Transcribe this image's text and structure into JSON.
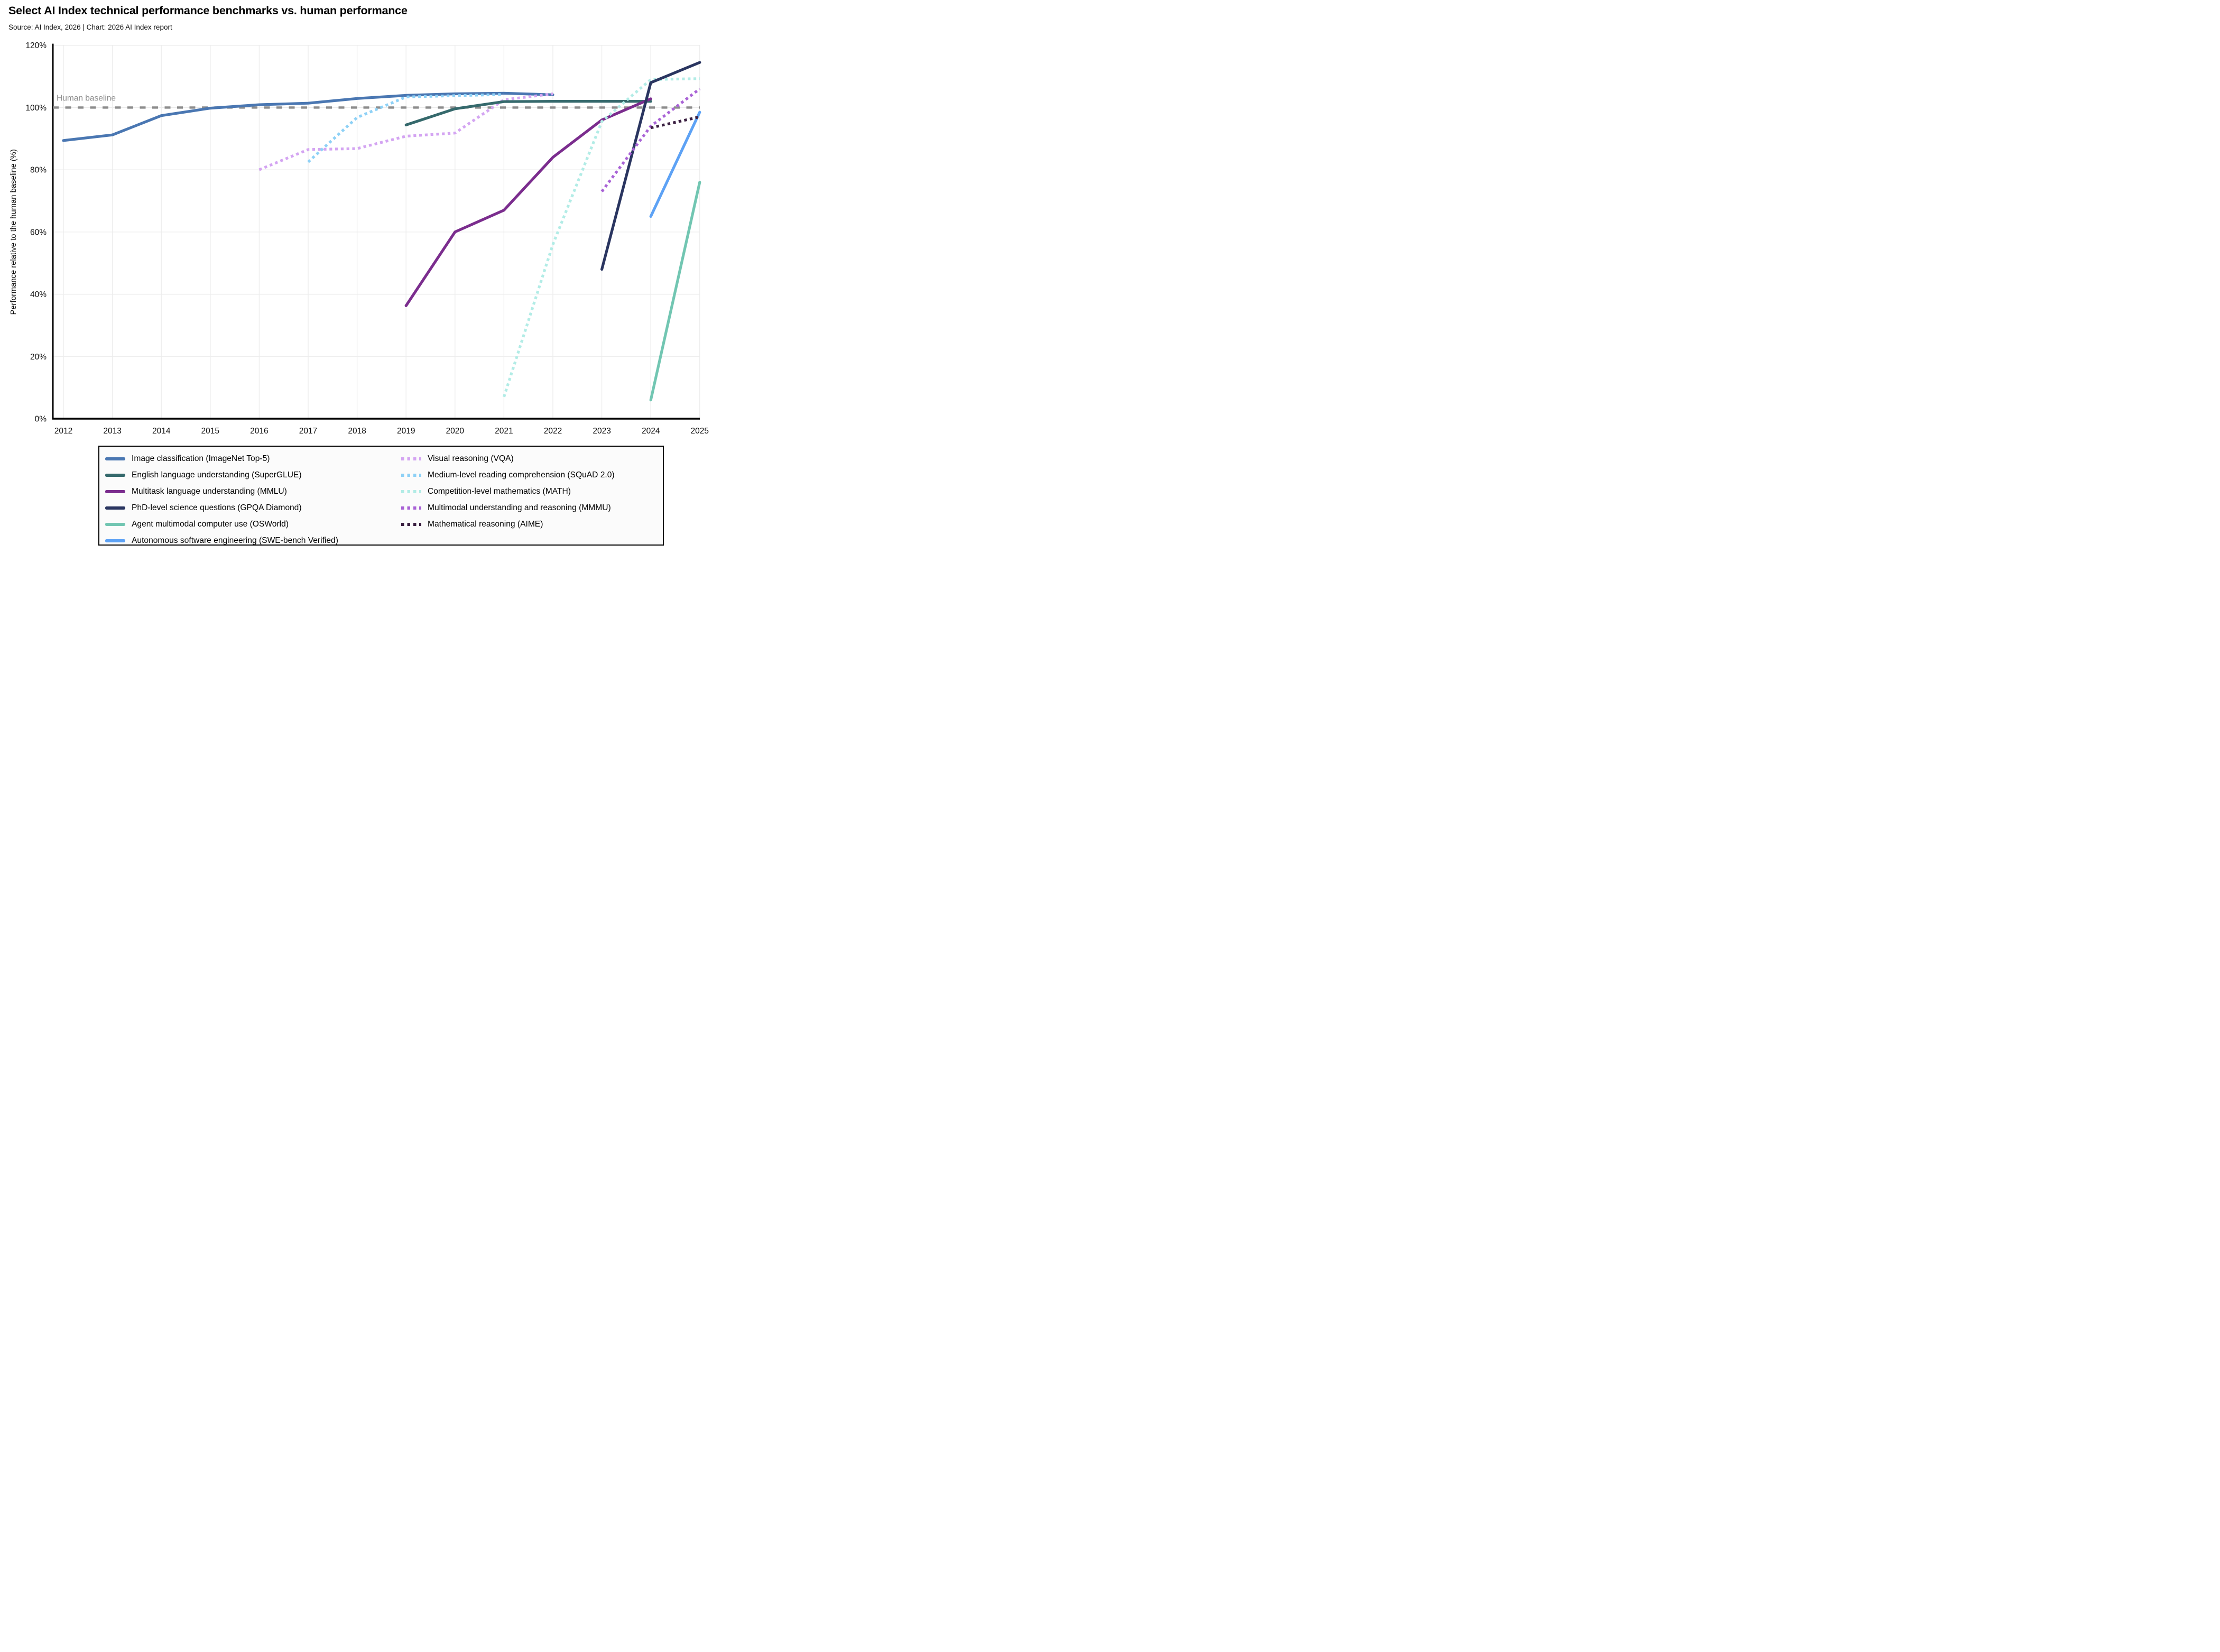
{
  "header": {
    "title": "Select AI Index technical performance benchmarks vs. human performance",
    "subtitle": "Source: AI Index, 2026 | Chart: 2026 AI Index report"
  },
  "chart_data": {
    "type": "line",
    "title": "Select AI Index technical performance benchmarks vs. human performance",
    "xlabel": "",
    "ylabel": "Performance relative to the human baseline (%)",
    "xlim": [
      2012,
      2025
    ],
    "ylim": [
      0,
      120
    ],
    "x_ticks": [
      2012,
      2013,
      2014,
      2015,
      2016,
      2017,
      2018,
      2019,
      2020,
      2021,
      2022,
      2023,
      2024,
      2025
    ],
    "y_ticks": [
      0,
      20,
      40,
      60,
      80,
      100,
      120
    ],
    "y_tick_suffix": "%",
    "grid": true,
    "legend_position": "bottom",
    "baseline": {
      "value": 100,
      "label": "Human baseline",
      "color": "#8c8c8c",
      "style": "dashed"
    },
    "series": [
      {
        "name": "Image classification (ImageNet Top-5)",
        "color": "#4a77b2",
        "style": "solid",
        "points": [
          [
            2012,
            89.4
          ],
          [
            2013,
            91.2
          ],
          [
            2014,
            97.4
          ],
          [
            2015,
            99.8
          ],
          [
            2016,
            100.9
          ],
          [
            2017,
            101.4
          ],
          [
            2018,
            102.9
          ],
          [
            2019,
            103.9
          ],
          [
            2020,
            104.4
          ],
          [
            2021,
            104.6
          ],
          [
            2022,
            104.1
          ]
        ]
      },
      {
        "name": "English language understanding (SuperGLUE)",
        "color": "#35696c",
        "style": "solid",
        "points": [
          [
            2019,
            94.4
          ],
          [
            2020,
            99.6
          ],
          [
            2021,
            101.9
          ],
          [
            2022,
            102.0
          ],
          [
            2023,
            102.0
          ],
          [
            2024,
            102.0
          ]
        ]
      },
      {
        "name": "Multitask language understanding (MMLU)",
        "color": "#7b2d8e",
        "style": "solid",
        "points": [
          [
            2019,
            36.3
          ],
          [
            2020,
            60.0
          ],
          [
            2021,
            67.0
          ],
          [
            2022,
            84.0
          ],
          [
            2023,
            96.0
          ],
          [
            2024,
            102.8
          ]
        ]
      },
      {
        "name": "PhD-level science questions (GPQA Diamond)",
        "color": "#2a3560",
        "style": "solid",
        "points": [
          [
            2023,
            48.0
          ],
          [
            2024,
            108.0
          ],
          [
            2025,
            114.5
          ]
        ]
      },
      {
        "name": "Agent multimodal computer use (OSWorld)",
        "color": "#72c6b2",
        "style": "solid",
        "points": [
          [
            2024,
            6.0
          ],
          [
            2025,
            76.0
          ]
        ]
      },
      {
        "name": "Autonomous software engineering (SWE-bench Verified)",
        "color": "#5da2f5",
        "style": "solid",
        "points": [
          [
            2024,
            65.0
          ],
          [
            2025,
            98.5
          ]
        ]
      },
      {
        "name": "Visual reasoning (VQA)",
        "color": "#d4a5f2",
        "style": "dotted",
        "points": [
          [
            2016,
            80.0
          ],
          [
            2017,
            86.5
          ],
          [
            2018,
            86.8
          ],
          [
            2019,
            90.8
          ],
          [
            2020,
            91.8
          ],
          [
            2021,
            102.5
          ],
          [
            2022,
            104.4
          ]
        ]
      },
      {
        "name": "Medium-level reading comprehension (SQuAD 2.0)",
        "color": "#8ed1f6",
        "style": "dotted",
        "points": [
          [
            2017,
            82.5
          ],
          [
            2018,
            96.8
          ],
          [
            2019,
            103.4
          ],
          [
            2020,
            103.8
          ],
          [
            2021,
            104.2
          ]
        ]
      },
      {
        "name": "Competition-level mathematics (MATH)",
        "color": "#b2ece6",
        "style": "dotted",
        "points": [
          [
            2021,
            7.0
          ],
          [
            2022,
            56.0
          ],
          [
            2023,
            95.5
          ],
          [
            2024,
            109.0
          ],
          [
            2025,
            109.3
          ]
        ]
      },
      {
        "name": "Multimodal understanding and reasoning (MMMU)",
        "color": "#a963d6",
        "style": "dotted",
        "points": [
          [
            2023,
            73.0
          ],
          [
            2024,
            94.0
          ],
          [
            2025,
            106.0
          ]
        ]
      },
      {
        "name": "Mathematical reasoning (AIME)",
        "color": "#3a1f41",
        "style": "dotted",
        "points": [
          [
            2024,
            93.5
          ],
          [
            2025,
            97.0
          ]
        ]
      }
    ],
    "legend_columns": [
      [
        0,
        1,
        2,
        3,
        4,
        5
      ],
      [
        6,
        7,
        8,
        9,
        10
      ]
    ]
  }
}
